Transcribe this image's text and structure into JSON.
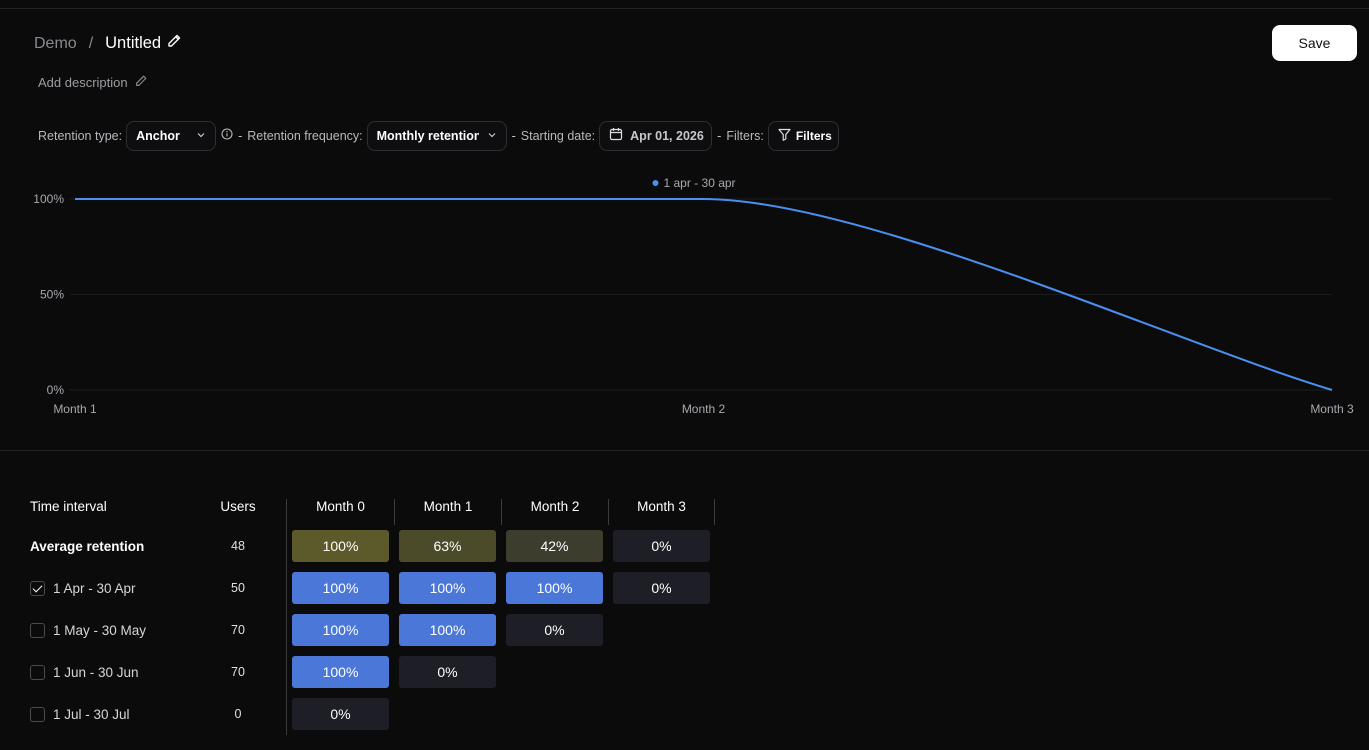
{
  "breadcrumb": {
    "parent": "Demo",
    "separator": "/",
    "title": "Untitled"
  },
  "description_label": "Add description",
  "save_label": "Save",
  "toolbar": {
    "retention_type_label": "Retention type:",
    "retention_type_value": "Anchor",
    "retention_frequency_label": "Retention frequency:",
    "retention_frequency_value": "Monthly retention",
    "starting_date_label": "Starting date:",
    "starting_date_value": "Apr 01, 2026",
    "filters_label": "Filters:",
    "filters_button": "Filters",
    "dash": "-"
  },
  "chart_data": {
    "type": "line",
    "x": [
      "Month 1",
      "Month 2",
      "Month 3"
    ],
    "series": [
      {
        "name": "1 apr - 30 apr",
        "values": [
          100,
          100,
          0
        ],
        "color": "#4a90f0"
      }
    ],
    "y_ticks": [
      "100%",
      "50%",
      "0%"
    ],
    "ylim": [
      0,
      100
    ],
    "grid": true,
    "legend": "top-center"
  },
  "table": {
    "headers": [
      "Time interval",
      "Users",
      "Month 0",
      "Month 1",
      "Month 2",
      "Month 3"
    ],
    "rows": [
      {
        "label": "Average retention",
        "users": "48",
        "checkbox": null,
        "cells": [
          "100%",
          "63%",
          "42%",
          "0%"
        ],
        "colors": [
          "#5c5a2a",
          "#4b4b2a",
          "#3c3d2c",
          "#1d1e26"
        ]
      },
      {
        "label": "1 Apr - 30 Apr",
        "users": "50",
        "checkbox": true,
        "cells": [
          "100%",
          "100%",
          "100%",
          "0%"
        ],
        "colors": [
          "#4a77d8",
          "#4a77d8",
          "#4a77d8",
          "#1d1e26"
        ]
      },
      {
        "label": "1 May - 30 May",
        "users": "70",
        "checkbox": false,
        "cells": [
          "100%",
          "100%",
          "0%"
        ],
        "colors": [
          "#4a77d8",
          "#4a77d8",
          "#1d1e26"
        ]
      },
      {
        "label": "1 Jun - 30 Jun",
        "users": "70",
        "checkbox": false,
        "cells": [
          "100%",
          "0%"
        ],
        "colors": [
          "#4a77d8",
          "#1d1e26"
        ]
      },
      {
        "label": "1 Jul - 30 Jul",
        "users": "0",
        "checkbox": false,
        "cells": [
          "0%"
        ],
        "colors": [
          "#1d1e26"
        ]
      }
    ]
  }
}
